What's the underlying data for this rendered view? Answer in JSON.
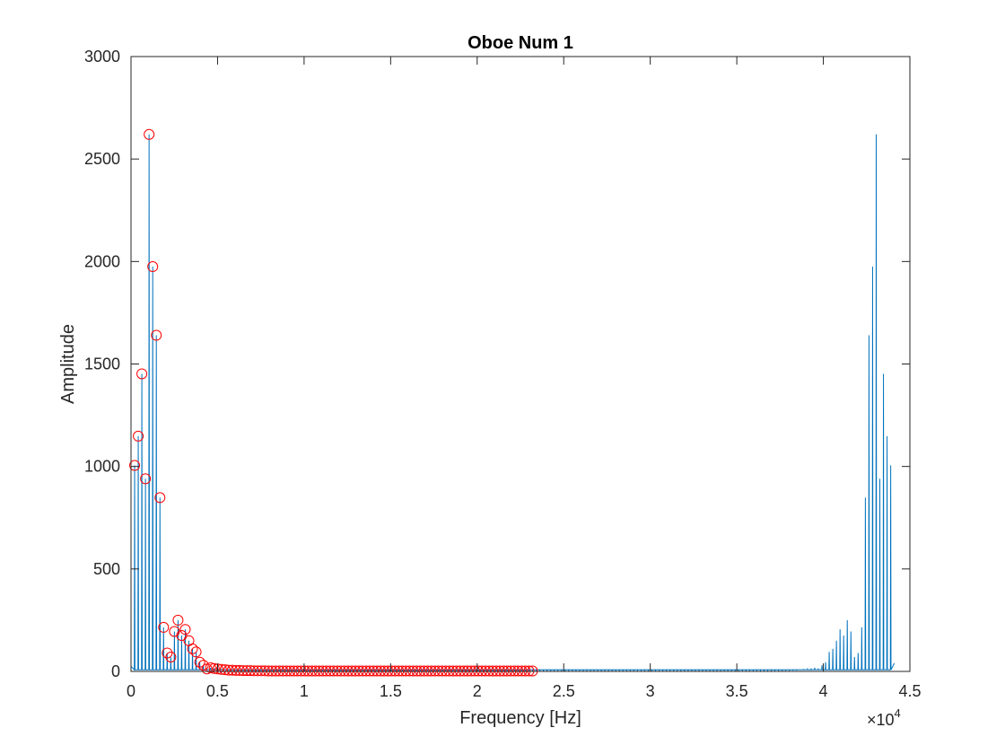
{
  "chart_data": {
    "type": "line",
    "title": "Oboe Num 1",
    "xlabel": "Frequency [Hz]",
    "ylabel": "Amplitude",
    "xlim": [
      0,
      45000
    ],
    "ylim": [
      0,
      3000
    ],
    "x_exponent_label": {
      "base": "×10",
      "exp": "4"
    },
    "x_ticks": [
      0,
      5000,
      10000,
      15000,
      20000,
      25000,
      30000,
      35000,
      40000,
      45000
    ],
    "x_tick_labels": [
      "0",
      "0.5",
      "1",
      "1.5",
      "2",
      "2.5",
      "3",
      "3.5",
      "4",
      "4.5"
    ],
    "y_ticks": [
      0,
      500,
      1000,
      1500,
      2000,
      2500,
      3000
    ],
    "y_tick_labels": [
      "0",
      "500",
      "1000",
      "1500",
      "2000",
      "2500",
      "3000"
    ],
    "grid": false,
    "box": true,
    "colors": {
      "spectrum": "#0072bd",
      "peaks": "#ff0000",
      "axes": "#262626"
    },
    "series": [
      {
        "style": "line",
        "harmonic_spacing": 209,
        "harmonics_low": [
          1005,
          1148,
          1452,
          940,
          2620,
          1975,
          1640,
          848,
          215,
          90,
          70,
          195,
          250,
          175,
          205,
          150,
          110,
          95,
          45,
          30,
          12,
          18,
          14,
          12,
          10,
          8,
          6,
          6,
          5,
          5,
          4,
          4,
          4,
          3,
          3,
          3,
          3,
          2,
          2,
          2,
          2,
          2,
          2,
          2,
          2,
          2,
          2,
          2,
          2,
          2,
          2,
          2,
          2,
          2,
          2,
          2,
          2,
          2,
          2,
          2,
          2,
          2,
          2,
          2,
          2,
          2,
          2,
          2,
          2,
          2,
          2,
          2,
          2,
          2,
          2,
          2,
          2,
          2,
          2,
          2,
          2,
          2,
          2,
          2,
          2,
          2,
          2,
          2,
          2,
          2,
          2,
          2,
          2,
          2,
          2,
          2,
          2,
          2,
          2,
          2,
          2,
          2,
          2,
          2,
          2,
          2,
          2,
          2,
          2,
          2,
          2
        ]
      },
      {
        "style": "markers",
        "marker": "circle",
        "x": [
          209,
          418,
          627,
          836,
          1045,
          1254,
          1463,
          1672,
          1881,
          2090,
          2299,
          2508,
          2717,
          2926,
          3135,
          3344,
          3553,
          3762,
          3971,
          4180,
          4389,
          4598,
          4807,
          5016,
          5225,
          5434,
          5643,
          5852,
          6061,
          6270,
          6479,
          6688,
          6897,
          7106,
          7315,
          7524,
          7733,
          7942,
          8151,
          8360,
          8569,
          8778,
          8987,
          9196,
          9405,
          9614,
          9823,
          10032,
          10241,
          10450,
          10659,
          10868,
          11077,
          11286,
          11495,
          11704,
          11913,
          12122,
          12331,
          12540,
          12749,
          12958,
          13167,
          13376,
          13585,
          13794,
          14003,
          14212,
          14421,
          14630,
          14839,
          15048,
          15257,
          15466,
          15675,
          15884,
          16093,
          16302,
          16511,
          16720,
          16929,
          17138,
          17347,
          17556,
          17765,
          17974,
          18183,
          18392,
          18601,
          18810,
          19019,
          19228,
          19437,
          19646,
          19855,
          20064,
          20273,
          20482,
          20691,
          20900,
          21109,
          21318,
          21527,
          21736,
          21945,
          22154,
          22363,
          22572,
          22781,
          22990,
          23199
        ],
        "y": [
          1005,
          1148,
          1452,
          940,
          2620,
          1975,
          1640,
          848,
          215,
          90,
          70,
          195,
          250,
          175,
          205,
          150,
          110,
          95,
          45,
          30,
          12,
          18,
          14,
          12,
          10,
          8,
          6,
          6,
          5,
          5,
          4,
          4,
          4,
          3,
          3,
          3,
          3,
          2,
          2,
          2,
          2,
          2,
          2,
          2,
          2,
          2,
          2,
          2,
          2,
          2,
          2,
          2,
          2,
          2,
          2,
          2,
          2,
          2,
          2,
          2,
          2,
          2,
          2,
          2,
          2,
          2,
          2,
          2,
          2,
          2,
          2,
          2,
          2,
          2,
          2,
          2,
          2,
          2,
          2,
          2,
          2,
          2,
          2,
          2,
          2,
          2,
          2,
          2,
          2,
          2,
          2,
          2,
          2,
          2,
          2,
          2,
          2,
          2,
          2,
          2,
          2,
          2,
          2,
          2,
          2,
          2,
          2,
          2,
          2,
          2,
          2
        ]
      }
    ]
  }
}
